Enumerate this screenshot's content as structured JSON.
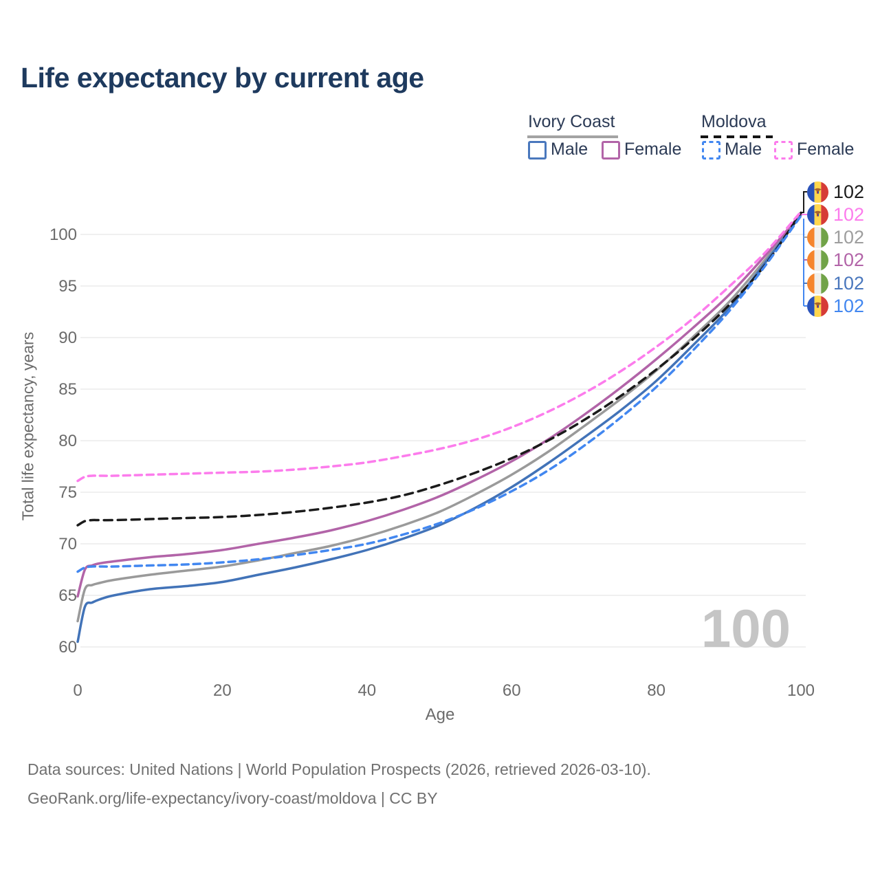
{
  "header": {
    "title": "Life expectancy by current age"
  },
  "legend": {
    "groups": [
      {
        "name": "Ivory Coast",
        "style": "solid",
        "swatch_color": "#9a9a9a",
        "items": [
          {
            "label": "Male",
            "color": "#4a78bd"
          },
          {
            "label": "Female",
            "color": "#b264a8"
          }
        ]
      },
      {
        "name": "Moldova",
        "style": "dashed",
        "swatch_color": "#141414",
        "items": [
          {
            "label": "Male",
            "color": "#4287f0"
          },
          {
            "label": "Female",
            "color": "#fc7cec"
          }
        ]
      }
    ]
  },
  "chart_data": {
    "type": "line",
    "title": "Life expectancy by current age",
    "xlabel": "Age",
    "ylabel": "Total life expectancy, years",
    "xlim": [
      0,
      100
    ],
    "ylim": [
      60,
      102.3
    ],
    "x_ticks": [
      "0",
      "20",
      "40",
      "60",
      "80",
      "100"
    ],
    "y_ticks": [
      "60",
      "65",
      "70",
      "75",
      "80",
      "85",
      "90",
      "95",
      "100"
    ],
    "grid": true,
    "legend_position": "top-right",
    "age_indicator": "100",
    "x": [
      0,
      1,
      2,
      3,
      5,
      10,
      15,
      20,
      25,
      30,
      35,
      40,
      45,
      50,
      55,
      60,
      65,
      70,
      75,
      80,
      85,
      90,
      95,
      100
    ],
    "series": [
      {
        "name": "Ivory Coast Both",
        "country": "Ivory Coast",
        "sex": "Both",
        "color": "#9a9a9a",
        "dash": null,
        "values": [
          62.5,
          65.6,
          66.0,
          66.2,
          66.5,
          67.0,
          67.4,
          67.8,
          68.4,
          69.1,
          69.8,
          70.7,
          71.8,
          73.1,
          74.8,
          76.7,
          78.9,
          81.4,
          84.0,
          86.8,
          90.0,
          93.4,
          97.5,
          102.0
        ]
      },
      {
        "name": "Ivory Coast Male",
        "country": "Ivory Coast",
        "sex": "Male",
        "color": "#4273b8",
        "dash": null,
        "values": [
          60.5,
          63.9,
          64.3,
          64.6,
          65.0,
          65.6,
          65.9,
          66.3,
          67.0,
          67.7,
          68.5,
          69.4,
          70.5,
          71.8,
          73.5,
          75.5,
          77.8,
          80.3,
          82.9,
          85.8,
          89.2,
          92.8,
          97.2,
          101.9
        ]
      },
      {
        "name": "Ivory Coast Female",
        "country": "Ivory Coast",
        "sex": "Female",
        "color": "#b264a8",
        "dash": null,
        "values": [
          64.9,
          67.5,
          67.9,
          68.1,
          68.3,
          68.7,
          69.0,
          69.4,
          70.0,
          70.6,
          71.3,
          72.2,
          73.3,
          74.6,
          76.2,
          78.0,
          80.1,
          82.5,
          85.1,
          87.9,
          90.9,
          94.1,
          97.9,
          102.0
        ]
      },
      {
        "name": "Moldova Both",
        "country": "Moldova",
        "sex": "Both",
        "color": "#1b1b1b",
        "dash": "12 8",
        "values": [
          71.8,
          72.2,
          72.3,
          72.3,
          72.3,
          72.4,
          72.5,
          72.6,
          72.8,
          73.1,
          73.5,
          74.0,
          74.7,
          75.7,
          76.9,
          78.3,
          80.0,
          82.0,
          84.3,
          86.9,
          89.8,
          93.1,
          97.0,
          102.1
        ]
      },
      {
        "name": "Moldova Male",
        "country": "Moldova",
        "sex": "Male",
        "color": "#4287f0",
        "dash": "10 7",
        "values": [
          67.3,
          67.7,
          67.8,
          67.8,
          67.8,
          67.9,
          68.0,
          68.2,
          68.5,
          68.9,
          69.4,
          70.0,
          70.9,
          72.0,
          73.4,
          75.1,
          77.1,
          79.5,
          82.2,
          85.2,
          88.7,
          92.5,
          96.9,
          101.8
        ]
      },
      {
        "name": "Moldova Female",
        "country": "Moldova",
        "sex": "Female",
        "color": "#fc7cec",
        "dash": "10 7",
        "values": [
          76.1,
          76.5,
          76.6,
          76.6,
          76.6,
          76.7,
          76.8,
          76.9,
          77.0,
          77.2,
          77.5,
          77.9,
          78.5,
          79.2,
          80.1,
          81.3,
          82.8,
          84.6,
          86.7,
          89.1,
          91.8,
          94.9,
          98.2,
          102.2
        ]
      }
    ],
    "end_labels": [
      {
        "flag": "moldova",
        "series": "Moldova Both",
        "text": "102",
        "color": "#1c1c1c"
      },
      {
        "flag": "moldova",
        "series": "Moldova Female",
        "text": "102",
        "color": "#fc7cec"
      },
      {
        "flag": "ivory-coast",
        "series": "Ivory Coast Both",
        "text": "102",
        "color": "#9e9e9e"
      },
      {
        "flag": "ivory-coast",
        "series": "Ivory Coast Female",
        "text": "102",
        "color": "#b264a8"
      },
      {
        "flag": "ivory-coast",
        "series": "Ivory Coast Male",
        "text": "102",
        "color": "#4a77bd"
      },
      {
        "flag": "moldova",
        "series": "Moldova Male",
        "text": "102",
        "color": "#4287f0"
      }
    ]
  },
  "icons": {
    "moldova_flag": {
      "blue": "#2a52b9",
      "yellow": "#ffd64d",
      "red": "#d63b36",
      "emblem": "#a5642e",
      "emblem_red": "#c0392b"
    },
    "ivory_coast_flag": {
      "orange": "#f5852d",
      "white": "#f0efeb",
      "green": "#71a348"
    }
  },
  "footer": {
    "line1": "Data sources: United Nations | World Population Prospects (2026, retrieved 2026-03-10).",
    "line2": "GeoRank.org/life-expectancy/ivory-coast/moldova | CC BY"
  }
}
